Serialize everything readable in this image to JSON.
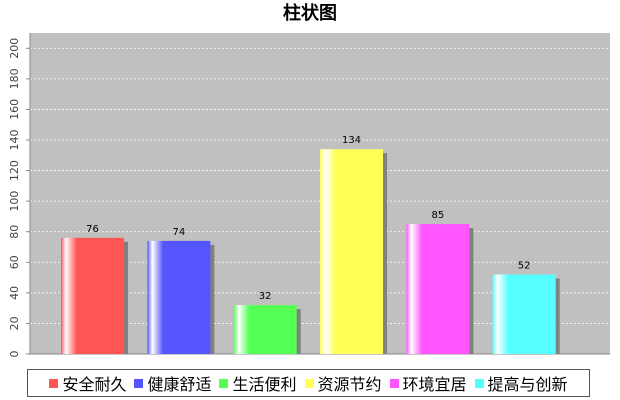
{
  "chart_data": {
    "type": "bar",
    "title": "柱状图",
    "categories": [
      null
    ],
    "series": [
      {
        "name": "安全耐久",
        "color": "#ff5555",
        "values": [
          76
        ]
      },
      {
        "name": "健康舒适",
        "color": "#5555ff",
        "values": [
          74
        ]
      },
      {
        "name": "生活便利",
        "color": "#55ff55",
        "values": [
          32
        ]
      },
      {
        "name": "资源节约",
        "color": "#ffff55",
        "values": [
          134
        ]
      },
      {
        "name": "环境宜居",
        "color": "#ff55ff",
        "values": [
          85
        ]
      },
      {
        "name": "提高与创新",
        "color": "#55ffff",
        "values": [
          52
        ]
      }
    ],
    "ylim": [
      0,
      210
    ],
    "yticks": [
      0,
      20,
      40,
      60,
      80,
      100,
      120,
      140,
      160,
      180,
      200
    ],
    "grid": true,
    "legend": "bottom"
  }
}
